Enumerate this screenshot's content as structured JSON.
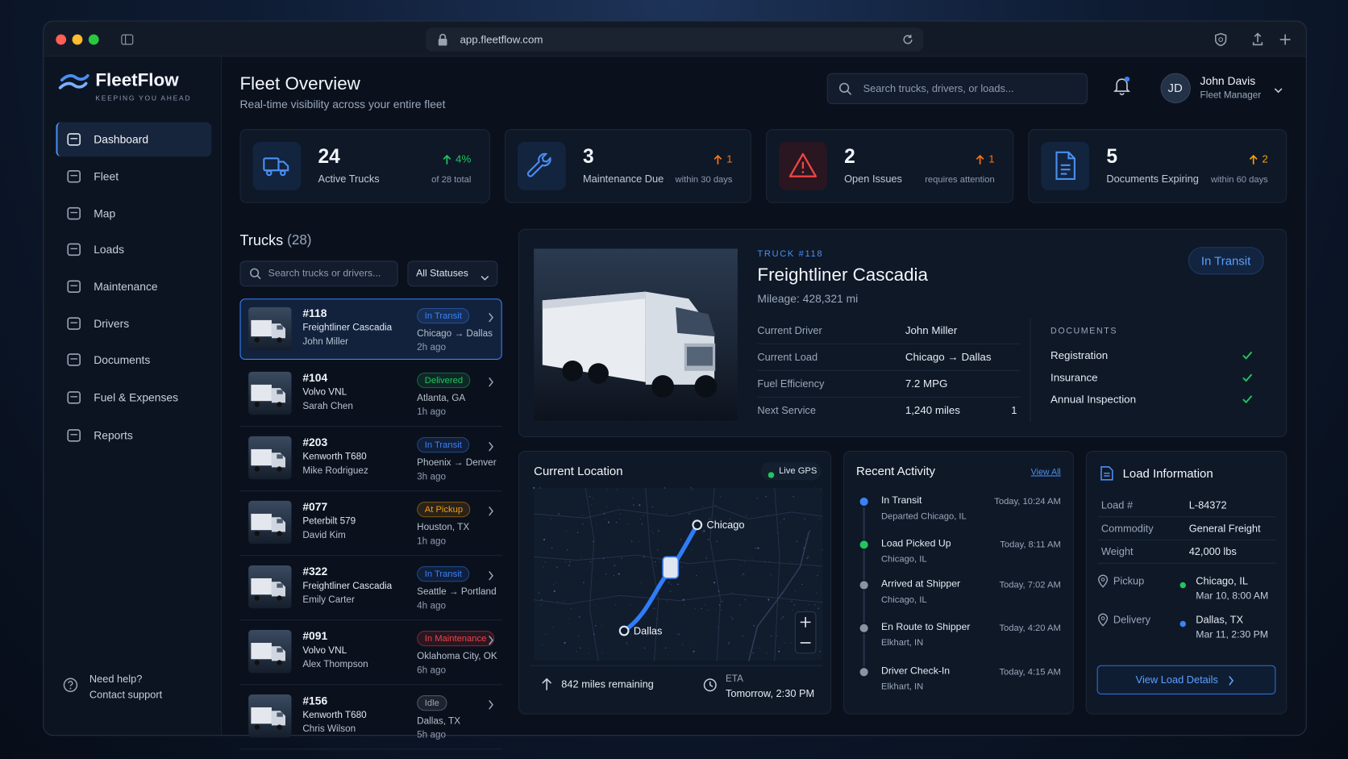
{
  "browser": {
    "url": "app.fleetflow.com"
  },
  "sidebar": {
    "brand": "FleetFlow",
    "tagline": "KEEPING YOU AHEAD",
    "nav": [
      "Dashboard",
      "Fleet",
      "Map",
      "Loads",
      "Maintenance",
      "Drivers",
      "Documents",
      "Fuel & Expenses",
      "Reports"
    ],
    "help": {
      "title": "Need help?",
      "link": "Contact support"
    }
  },
  "header": {
    "title": "Fleet Overview",
    "subtitle": "Real-time visibility across your entire fleet",
    "search_placeholder": "Search trucks, drivers, or loads...",
    "user": {
      "initials": "JD",
      "name": "John Davis",
      "role": "Fleet Manager"
    }
  },
  "stats": [
    {
      "value": 24,
      "label": "Active Trucks",
      "change": "4%",
      "note": "of 28 total",
      "color": "#22c55e"
    },
    {
      "value": 3,
      "label": "Maintenance Due",
      "change": 1,
      "note": "within 30 days",
      "color": "#f97316"
    },
    {
      "value": 2,
      "label": "Open Issues",
      "change": 1,
      "note": "requires attention",
      "color": "#f97316"
    },
    {
      "value": 5,
      "label": "Documents Expiring",
      "change": 2,
      "note": "within 60 days",
      "color": "#f59e0b"
    }
  ],
  "trucks": {
    "title": "Trucks",
    "count": "(28)",
    "search_placeholder": "Search trucks or drivers...",
    "filter": "All Statuses",
    "items": [
      {
        "id": "#118",
        "model": "Freightliner Cascadia",
        "driver": "John Miller",
        "status": "In Transit",
        "color": "#3b82f6",
        "location": "Chicago → Dallas",
        "updated": "2h ago"
      },
      {
        "id": "#104",
        "model": "Volvo VNL",
        "driver": "Sarah Chen",
        "status": "Delivered",
        "color": "#22c55e",
        "location": "Atlanta, GA",
        "updated": "1h ago"
      },
      {
        "id": "#203",
        "model": "Kenworth T680",
        "driver": "Mike Rodriguez",
        "status": "In Transit",
        "color": "#3b82f6",
        "location": "Phoenix → Denver",
        "updated": "3h ago"
      },
      {
        "id": "#077",
        "model": "Peterbilt 579",
        "driver": "David Kim",
        "status": "At Pickup",
        "color": "#f59e0b",
        "location": "Houston, TX",
        "updated": "1h ago"
      },
      {
        "id": "#322",
        "model": "Freightliner Cascadia",
        "driver": "Emily Carter",
        "status": "In Transit",
        "color": "#3b82f6",
        "location": "Seattle → Portland",
        "updated": "4h ago"
      },
      {
        "id": "#091",
        "model": "Volvo VNL",
        "driver": "Alex Thompson",
        "status": "In Maintenance",
        "color": "#ef4444",
        "location": "Oklahoma City, OK",
        "updated": "6h ago"
      },
      {
        "id": "#156",
        "model": "Kenworth T680",
        "driver": "Chris Wilson",
        "status": "Idle",
        "color": "#9ca3af",
        "location": "Dallas, TX",
        "updated": "5h ago"
      }
    ]
  },
  "detail": {
    "label": "TRUCK #118",
    "name": "Freightliner Cascadia",
    "mileage": "Mileage: 428,321 mi",
    "status": "In Transit",
    "specs": [
      {
        "label": "Current Driver",
        "value": "John Miller"
      },
      {
        "label": "Current Load",
        "value": "Chicago → Dallas"
      },
      {
        "label": "Fuel Efficiency",
        "value": "7.2 MPG"
      },
      {
        "label": "Next Service",
        "value": "1,240 miles",
        "extra": "1"
      }
    ],
    "documents": {
      "title": "DOCUMENTS",
      "items": [
        "Registration",
        "Insurance",
        "Annual Inspection"
      ]
    }
  },
  "location": {
    "title": "Current Location",
    "badge": "Live GPS",
    "origin": "Chicago",
    "destination": "Dallas",
    "remaining": "842 miles remaining",
    "eta_label": "ETA",
    "eta": "Tomorrow, 2:30 PM"
  },
  "activity": {
    "title": "Recent Activity",
    "link": "View All",
    "items": [
      {
        "title": "In Transit",
        "detail": "Departed Chicago, IL",
        "time": "Today, 10:24 AM",
        "color": "#3b82f6"
      },
      {
        "title": "Load Picked Up",
        "detail": "Chicago, IL",
        "time": "Today, 8:11 AM",
        "color": "#22c55e"
      },
      {
        "title": "Arrived at Shipper",
        "detail": "Chicago, IL",
        "time": "Today, 7:02 AM",
        "color": "#8b93a3"
      },
      {
        "title": "En Route to Shipper",
        "detail": "Elkhart, IN",
        "time": "Today, 4:20 AM",
        "color": "#8b93a3"
      },
      {
        "title": "Driver Check-In",
        "detail": "Elkhart, IN",
        "time": "Today, 4:15 AM",
        "color": "#8b93a3"
      }
    ]
  },
  "load": {
    "title": "Load Information",
    "rows": [
      {
        "label": "Load #",
        "value": "L-84372"
      },
      {
        "label": "Commodity",
        "value": "General Freight"
      },
      {
        "label": "Weight",
        "value": "42,000 lbs"
      }
    ],
    "stops": [
      {
        "label": "Pickup",
        "place": "Chicago, IL",
        "time": "Mar 10, 8:00 AM",
        "color": "#22c55e"
      },
      {
        "label": "Delivery",
        "place": "Dallas, TX",
        "time": "Mar 11, 2:30 PM",
        "color": "#3b82f6"
      }
    ],
    "button": "View Load Details"
  }
}
